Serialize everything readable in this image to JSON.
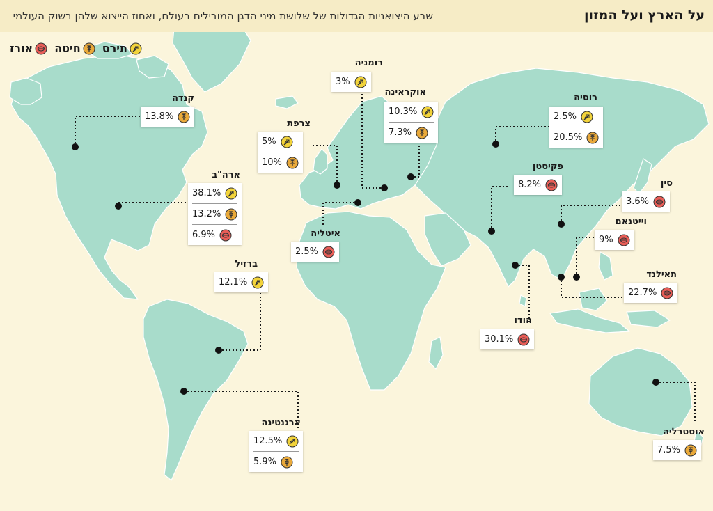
{
  "header": {
    "title": "על הארץ ועל המזון",
    "subtitle": "שבע היצואניות הגדולות של שלושת מיני הדגן המובילים בעולם, ואחוז הייצוא שלהן בשוק העולמי"
  },
  "legend": [
    {
      "icon": "corn-icon",
      "label": "תירס"
    },
    {
      "icon": "wheat-icon",
      "label": "חיטה"
    },
    {
      "icon": "rice-icon",
      "label": "אורז"
    }
  ],
  "colors": {
    "land": "#a8dccb",
    "background": "#fbf5dc",
    "corn": "#f2d33a",
    "wheat": "#e9a93a",
    "rice": "#e85d57"
  },
  "countries": [
    {
      "id": "canada",
      "name": "קנדה",
      "rows": [
        {
          "value": "13.8%",
          "icon": "wheat-icon"
        }
      ]
    },
    {
      "id": "usa",
      "name": "ארה\"ב",
      "rows": [
        {
          "value": "38.1%",
          "icon": "corn-icon"
        },
        {
          "value": "13.2%",
          "icon": "wheat-icon"
        },
        {
          "value": "6.9%",
          "icon": "rice-icon"
        }
      ]
    },
    {
      "id": "brazil",
      "name": "ברזיל",
      "rows": [
        {
          "value": "12.1%",
          "icon": "corn-icon"
        }
      ]
    },
    {
      "id": "argentina",
      "name": "ארגנטינה",
      "rows": [
        {
          "value": "12.5%",
          "icon": "corn-icon"
        },
        {
          "value": "5.9%",
          "icon": "wheat-icon"
        }
      ]
    },
    {
      "id": "france",
      "name": "צרפת",
      "rows": [
        {
          "value": "5%",
          "icon": "corn-icon"
        },
        {
          "value": "10%",
          "icon": "wheat-icon"
        }
      ]
    },
    {
      "id": "romania",
      "name": "רומניה",
      "rows": [
        {
          "value": "3%",
          "icon": "corn-icon"
        }
      ]
    },
    {
      "id": "ukraine",
      "name": "אוקראינה",
      "rows": [
        {
          "value": "10.3%",
          "icon": "corn-icon"
        },
        {
          "value": "7.3%",
          "icon": "wheat-icon"
        }
      ]
    },
    {
      "id": "italy",
      "name": "איטליה",
      "rows": [
        {
          "value": "2.5%",
          "icon": "rice-icon"
        }
      ]
    },
    {
      "id": "russia",
      "name": "רוסיה",
      "rows": [
        {
          "value": "2.5%",
          "icon": "corn-icon"
        },
        {
          "value": "20.5%",
          "icon": "wheat-icon"
        }
      ]
    },
    {
      "id": "pakistan",
      "name": "פקיסטן",
      "rows": [
        {
          "value": "8.2%",
          "icon": "rice-icon"
        }
      ]
    },
    {
      "id": "china",
      "name": "סין",
      "rows": [
        {
          "value": "3.6%",
          "icon": "rice-icon"
        }
      ]
    },
    {
      "id": "vietnam",
      "name": "וייטנאם",
      "rows": [
        {
          "value": "9%",
          "icon": "rice-icon"
        }
      ]
    },
    {
      "id": "thailand",
      "name": "תאילנד",
      "rows": [
        {
          "value": "22.7%",
          "icon": "rice-icon"
        }
      ]
    },
    {
      "id": "india",
      "name": "הודו",
      "rows": [
        {
          "value": "30.1%",
          "icon": "rice-icon"
        }
      ]
    },
    {
      "id": "australia",
      "name": "אוסטרליה",
      "rows": [
        {
          "value": "7.5%",
          "icon": "wheat-icon"
        }
      ]
    }
  ]
}
